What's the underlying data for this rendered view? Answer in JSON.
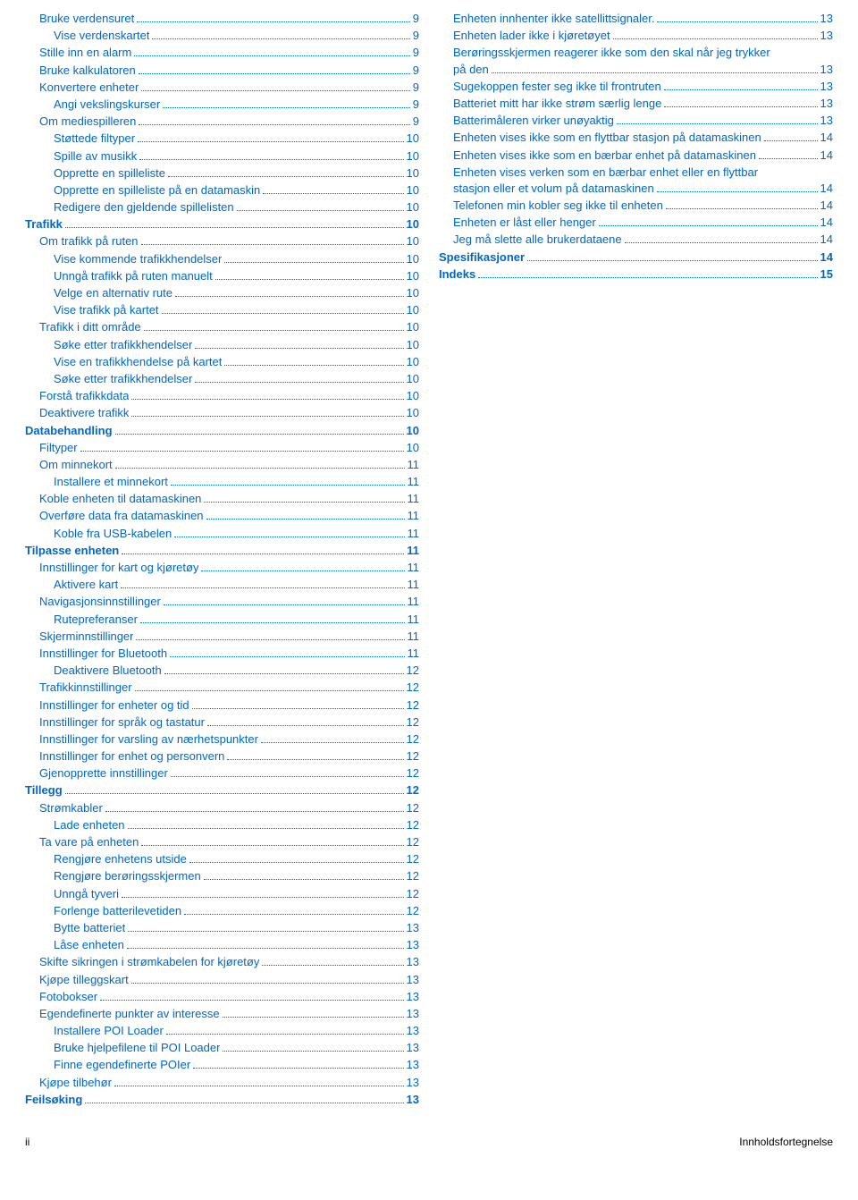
{
  "colors": {
    "link": "#0066cc",
    "text": "#000000",
    "bg": "#ffffff"
  },
  "footer": {
    "left": "ii",
    "right": "Innholdsfortegnelse"
  },
  "columns": [
    [
      {
        "label": "Bruke verdensuret",
        "page": "9",
        "indent": 1,
        "style": "link"
      },
      {
        "label": "Vise verdenskartet",
        "page": "9",
        "indent": 2,
        "style": "link"
      },
      {
        "label": "Stille inn en alarm",
        "page": "9",
        "indent": 1,
        "style": "link"
      },
      {
        "label": "Bruke kalkulatoren",
        "page": "9",
        "indent": 1,
        "style": "link"
      },
      {
        "label": "Konvertere enheter",
        "page": "9",
        "indent": 1,
        "style": "link"
      },
      {
        "label": "Angi vekslingskurser",
        "page": "9",
        "indent": 2,
        "style": "link"
      },
      {
        "label": "Om mediespilleren",
        "page": "9",
        "indent": 1,
        "style": "link"
      },
      {
        "label": "Støttede filtyper",
        "page": "10",
        "indent": 2,
        "style": "link"
      },
      {
        "label": "Spille av musikk",
        "page": "10",
        "indent": 2,
        "style": "link"
      },
      {
        "label": "Opprette en spilleliste",
        "page": "10",
        "indent": 2,
        "style": "link"
      },
      {
        "label": "Opprette en spilleliste på en datamaskin",
        "page": "10",
        "indent": 2,
        "style": "link"
      },
      {
        "label": "Redigere den gjeldende spillelisten",
        "page": "10",
        "indent": 2,
        "style": "link"
      },
      {
        "label": "Trafikk",
        "page": "10",
        "indent": 0,
        "style": "link-bold"
      },
      {
        "label": "Om trafikk på ruten",
        "page": "10",
        "indent": 1,
        "style": "link"
      },
      {
        "label": "Vise kommende trafikkhendelser",
        "page": "10",
        "indent": 2,
        "style": "link"
      },
      {
        "label": "Unngå trafikk på ruten manuelt",
        "page": "10",
        "indent": 2,
        "style": "link"
      },
      {
        "label": "Velge en alternativ rute",
        "page": "10",
        "indent": 2,
        "style": "link"
      },
      {
        "label": "Vise trafikk på kartet",
        "page": "10",
        "indent": 2,
        "style": "link"
      },
      {
        "label": "Trafikk i ditt område",
        "page": "10",
        "indent": 1,
        "style": "link"
      },
      {
        "label": "Søke etter trafikkhendelser",
        "page": "10",
        "indent": 2,
        "style": "link"
      },
      {
        "label": "Vise en trafikkhendelse på kartet",
        "page": "10",
        "indent": 2,
        "style": "link"
      },
      {
        "label": "Søke etter trafikkhendelser",
        "page": "10",
        "indent": 2,
        "style": "link"
      },
      {
        "label": "Forstå trafikkdata",
        "page": "10",
        "indent": 1,
        "style": "link"
      },
      {
        "label": "Deaktivere trafikk",
        "page": "10",
        "indent": 1,
        "style": "link"
      },
      {
        "label": "Databehandling",
        "page": "10",
        "indent": 0,
        "style": "link-bold"
      },
      {
        "label": "Filtyper",
        "page": "10",
        "indent": 1,
        "style": "link"
      },
      {
        "label": "Om minnekort",
        "page": "11",
        "indent": 1,
        "style": "link"
      },
      {
        "label": "Installere et minnekort",
        "page": "11",
        "indent": 2,
        "style": "link"
      },
      {
        "label": "Koble enheten til datamaskinen",
        "page": "11",
        "indent": 1,
        "style": "link"
      },
      {
        "label": "Overføre data fra datamaskinen",
        "page": "11",
        "indent": 1,
        "style": "link"
      },
      {
        "label": "Koble fra USB-kabelen",
        "page": "11",
        "indent": 2,
        "style": "link"
      },
      {
        "label": "Tilpasse enheten",
        "page": "11",
        "indent": 0,
        "style": "link-bold"
      },
      {
        "label": "Innstillinger for kart og kjøretøy",
        "page": "11",
        "indent": 1,
        "style": "link"
      },
      {
        "label": "Aktivere kart",
        "page": "11",
        "indent": 2,
        "style": "link"
      },
      {
        "label": "Navigasjonsinnstillinger",
        "page": "11",
        "indent": 1,
        "style": "link"
      },
      {
        "label": "Rutepreferanser",
        "page": "11",
        "indent": 2,
        "style": "link"
      },
      {
        "label": "Skjerminnstillinger",
        "page": "11",
        "indent": 1,
        "style": "link"
      },
      {
        "label": "Innstillinger for Bluetooth",
        "page": "11",
        "indent": 1,
        "style": "link"
      },
      {
        "label": "Deaktivere Bluetooth",
        "page": "12",
        "indent": 2,
        "style": "link"
      },
      {
        "label": "Trafikkinnstillinger",
        "page": "12",
        "indent": 1,
        "style": "link"
      },
      {
        "label": "Innstillinger for enheter og tid",
        "page": "12",
        "indent": 1,
        "style": "link"
      },
      {
        "label": "Innstillinger for språk og tastatur",
        "page": "12",
        "indent": 1,
        "style": "link"
      },
      {
        "label": "Innstillinger for varsling av nærhetspunkter",
        "page": "12",
        "indent": 1,
        "style": "link"
      },
      {
        "label": "Innstillinger for enhet og personvern",
        "page": "12",
        "indent": 1,
        "style": "link"
      },
      {
        "label": "Gjenopprette innstillinger",
        "page": "12",
        "indent": 1,
        "style": "link"
      },
      {
        "label": "Tillegg",
        "page": "12",
        "indent": 0,
        "style": "link-bold"
      },
      {
        "label": "Strømkabler",
        "page": "12",
        "indent": 1,
        "style": "link"
      },
      {
        "label": "Lade enheten",
        "page": "12",
        "indent": 2,
        "style": "link"
      },
      {
        "label": "Ta vare på enheten",
        "page": "12",
        "indent": 1,
        "style": "link"
      },
      {
        "label": "Rengjøre enhetens utside",
        "page": "12",
        "indent": 2,
        "style": "link"
      },
      {
        "label": "Rengjøre berøringsskjermen",
        "page": "12",
        "indent": 2,
        "style": "link"
      },
      {
        "label": "Unngå tyveri",
        "page": "12",
        "indent": 2,
        "style": "link"
      },
      {
        "label": "Forlenge batterilevetiden",
        "page": "12",
        "indent": 2,
        "style": "link"
      },
      {
        "label": "Bytte batteriet",
        "page": "13",
        "indent": 2,
        "style": "link"
      },
      {
        "label": "Låse enheten",
        "page": "13",
        "indent": 2,
        "style": "link"
      },
      {
        "label": "Skifte sikringen i strømkabelen for kjøretøy",
        "page": "13",
        "indent": 1,
        "style": "link"
      },
      {
        "label": "Kjøpe tilleggskart",
        "page": "13",
        "indent": 1,
        "style": "link"
      },
      {
        "label": "Fotobokser",
        "page": "13",
        "indent": 1,
        "style": "link"
      },
      {
        "label": "Egendefinerte punkter av interesse",
        "page": "13",
        "indent": 1,
        "style": "link"
      },
      {
        "label": "Installere POI Loader",
        "page": "13",
        "indent": 2,
        "style": "link"
      },
      {
        "label": "Bruke hjelpefilene til POI Loader",
        "page": "13",
        "indent": 2,
        "style": "link"
      },
      {
        "label": "Finne egendefinerte POIer",
        "page": "13",
        "indent": 2,
        "style": "link"
      },
      {
        "label": "Kjøpe tilbehør",
        "page": "13",
        "indent": 1,
        "style": "link"
      },
      {
        "label": "Feilsøking",
        "page": "13",
        "indent": 0,
        "style": "link-bold"
      }
    ],
    [
      {
        "label": "Enheten innhenter ikke satellittsignaler.",
        "page": "13",
        "indent": 1,
        "style": "link"
      },
      {
        "label": "Enheten lader ikke i kjøretøyet",
        "page": "13",
        "indent": 1,
        "style": "link"
      },
      {
        "wrap": true,
        "first": "Berøringsskjermen reagerer ikke som den skal når jeg trykker",
        "last": "på den",
        "page": "13",
        "indent": 1,
        "style": "link"
      },
      {
        "label": "Sugekoppen fester seg ikke til frontruten",
        "page": "13",
        "indent": 1,
        "style": "link"
      },
      {
        "label": "Batteriet mitt har ikke strøm særlig lenge",
        "page": "13",
        "indent": 1,
        "style": "link"
      },
      {
        "label": "Batterimåleren virker unøyaktig",
        "page": "13",
        "indent": 1,
        "style": "link"
      },
      {
        "label": "Enheten vises ikke som en flyttbar stasjon på datamaskinen",
        "page": "14",
        "indent": 1,
        "style": "link"
      },
      {
        "label": "Enheten vises ikke som en bærbar enhet på datamaskinen",
        "page": "14",
        "indent": 1,
        "style": "link"
      },
      {
        "wrap": true,
        "first": "Enheten vises verken som en bærbar enhet eller en flyttbar",
        "last": "stasjon eller et volum på datamaskinen",
        "page": "14",
        "indent": 1,
        "style": "link"
      },
      {
        "label": "Telefonen min kobler seg ikke til enheten",
        "page": "14",
        "indent": 1,
        "style": "link"
      },
      {
        "label": "Enheten er låst eller henger",
        "page": "14",
        "indent": 1,
        "style": "link"
      },
      {
        "label": "Jeg må slette alle brukerdataene",
        "page": "14",
        "indent": 1,
        "style": "link"
      },
      {
        "label": "Spesifikasjoner",
        "page": "14",
        "indent": 0,
        "style": "link-bold"
      },
      {
        "label": "Indeks",
        "page": "15",
        "indent": 0,
        "style": "link-bold"
      }
    ]
  ]
}
